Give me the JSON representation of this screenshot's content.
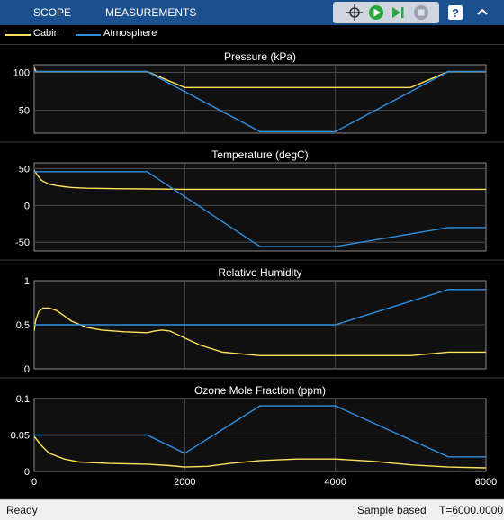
{
  "toolstrip": {
    "tabs": [
      {
        "label": "SCOPE"
      },
      {
        "label": "MEASUREMENTS"
      }
    ],
    "icons": [
      "highlight-signal-icon",
      "run-icon",
      "step-forward-icon",
      "stop-icon",
      "help-icon",
      "collapse-icon"
    ]
  },
  "legend": {
    "entries": [
      {
        "name": "Cabin",
        "color": "#ffe15a"
      },
      {
        "name": "Atmosphere",
        "color": "#2f8fe0"
      }
    ]
  },
  "chart_data": [
    {
      "type": "line",
      "title": "Pressure (kPa)",
      "xlim": [
        0,
        6000
      ],
      "ylim": [
        20,
        110
      ],
      "yticks": [
        50,
        100
      ],
      "ytick_labels": [
        "50",
        "100"
      ],
      "grid": true,
      "series": [
        {
          "name": "Cabin",
          "color": "#ffe15a",
          "x": [
            0,
            25,
            50,
            1500,
            2000,
            5000,
            5500,
            6000
          ],
          "y": [
            106,
            101,
            101,
            101,
            80,
            80,
            101,
            101
          ]
        },
        {
          "name": "Atmosphere",
          "color": "#2f8fe0",
          "x": [
            0,
            1500,
            3000,
            4000,
            5500,
            6000
          ],
          "y": [
            101,
            101,
            22,
            22,
            101,
            101
          ]
        }
      ]
    },
    {
      "type": "line",
      "title": "Temperature (degC)",
      "xlim": [
        0,
        6000
      ],
      "ylim": [
        -62,
        58
      ],
      "yticks": [
        -50,
        0,
        50
      ],
      "ytick_labels": [
        "-50",
        "0",
        "50"
      ],
      "grid": true,
      "series": [
        {
          "name": "Cabin",
          "color": "#ffe15a",
          "x": [
            0,
            50,
            100,
            200,
            300,
            400,
            500,
            700,
            1000,
            1500,
            2000,
            4000,
            6000
          ],
          "y": [
            48,
            40,
            34,
            29,
            27,
            25.5,
            24.5,
            23.5,
            23,
            22.5,
            22,
            22,
            22
          ]
        },
        {
          "name": "Atmosphere",
          "color": "#2f8fe0",
          "x": [
            0,
            1500,
            3000,
            4000,
            5500,
            6000
          ],
          "y": [
            46,
            46,
            -56,
            -56,
            -30,
            -30
          ]
        }
      ]
    },
    {
      "type": "line",
      "title": "Relative Humidity",
      "xlim": [
        0,
        6000
      ],
      "ylim": [
        0,
        1
      ],
      "yticks": [
        0,
        0.5,
        1
      ],
      "ytick_labels": [
        "0",
        "0.5",
        "1"
      ],
      "grid": true,
      "series": [
        {
          "name": "Cabin",
          "color": "#ffe15a",
          "x": [
            0,
            20,
            60,
            120,
            200,
            300,
            400,
            500,
            700,
            900,
            1200,
            1500,
            1600,
            1700,
            1800,
            1900,
            2000,
            2200,
            2500,
            3000,
            3500,
            4000,
            5000,
            5500,
            6000
          ],
          "y": [
            0.43,
            0.55,
            0.65,
            0.69,
            0.69,
            0.66,
            0.6,
            0.54,
            0.47,
            0.44,
            0.42,
            0.41,
            0.43,
            0.44,
            0.43,
            0.39,
            0.35,
            0.27,
            0.19,
            0.15,
            0.15,
            0.15,
            0.15,
            0.19,
            0.19
          ]
        },
        {
          "name": "Atmosphere",
          "color": "#2f8fe0",
          "x": [
            0,
            1500,
            3000,
            4000,
            5500,
            6000
          ],
          "y": [
            0.5,
            0.5,
            0.5,
            0.5,
            0.9,
            0.9
          ]
        }
      ]
    },
    {
      "type": "line",
      "title": "Ozone Mole Fraction (ppm)",
      "xlim": [
        0,
        6000
      ],
      "ylim": [
        0,
        0.1
      ],
      "yticks": [
        0,
        0.05,
        0.1
      ],
      "ytick_labels": [
        "0",
        "0.05",
        "0.1"
      ],
      "xticks": [
        0,
        2000,
        4000,
        6000
      ],
      "xtick_labels": [
        "0",
        "2000",
        "4000",
        "6000"
      ],
      "grid": true,
      "series": [
        {
          "name": "Cabin",
          "color": "#ffe15a",
          "x": [
            0,
            100,
            200,
            400,
            600,
            1000,
            1500,
            1800,
            2000,
            2300,
            2600,
            3000,
            3500,
            4000,
            4500,
            5000,
            5500,
            6000
          ],
          "y": [
            0.048,
            0.035,
            0.025,
            0.017,
            0.013,
            0.011,
            0.01,
            0.008,
            0.006,
            0.007,
            0.011,
            0.015,
            0.017,
            0.017,
            0.014,
            0.009,
            0.006,
            0.005
          ]
        },
        {
          "name": "Atmosphere",
          "color": "#2f8fe0",
          "x": [
            0,
            1500,
            2000,
            3000,
            4000,
            5500,
            6000
          ],
          "y": [
            0.05,
            0.05,
            0.025,
            0.09,
            0.09,
            0.02,
            0.02
          ]
        }
      ]
    }
  ],
  "status": {
    "left": "Ready",
    "mode": "Sample based",
    "time": "T=6000.0000"
  }
}
